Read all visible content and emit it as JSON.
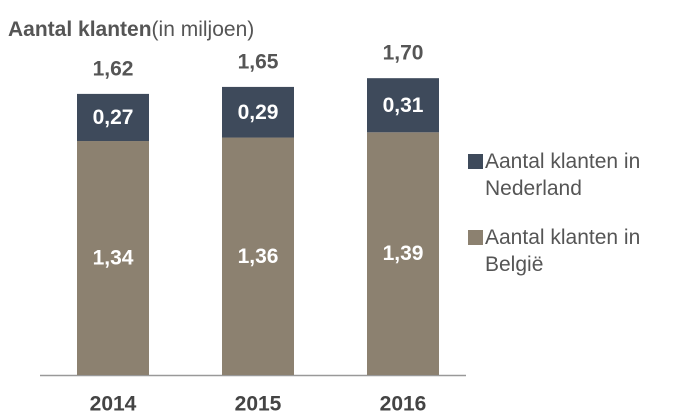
{
  "chart_data": {
    "type": "stacked_bar",
    "title": "Aantal klanten",
    "subtitle": "(in miljoen)",
    "categories": [
      "2014",
      "2015",
      "2016"
    ],
    "series": [
      {
        "name": "Aantal klanten in België",
        "color": "#8c8170",
        "values": [
          1.34,
          1.36,
          1.39
        ],
        "value_labels": [
          "1,34",
          "1,36",
          "1,39"
        ]
      },
      {
        "name": "Aantal klanten in Nederland",
        "color": "#3e4a5b",
        "values": [
          0.27,
          0.29,
          0.31
        ],
        "value_labels": [
          "0,27",
          "0,29",
          "0,31"
        ]
      }
    ],
    "totals": [
      1.62,
      1.65,
      1.7
    ],
    "total_labels": [
      "1,62",
      "1,65",
      "1,70"
    ],
    "legend": "right"
  }
}
